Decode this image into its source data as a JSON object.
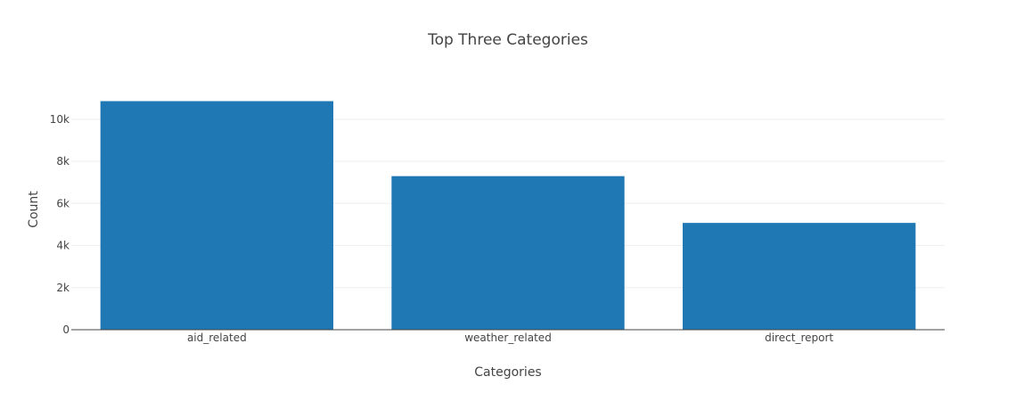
{
  "chart_data": {
    "type": "bar",
    "title": "Top Three Categories",
    "xlabel": "Categories",
    "ylabel": "Count",
    "categories": [
      "aid_related",
      "weather_related",
      "direct_report"
    ],
    "values": [
      10860,
      7297,
      5075
    ],
    "ylim": [
      0,
      11432
    ],
    "yticks": [
      0,
      2000,
      4000,
      6000,
      8000,
      10000
    ],
    "ytick_labels": [
      "0",
      "2k",
      "4k",
      "6k",
      "8k",
      "10k"
    ],
    "bar_color": "#1f77b4",
    "grid": true,
    "legend": "none"
  }
}
